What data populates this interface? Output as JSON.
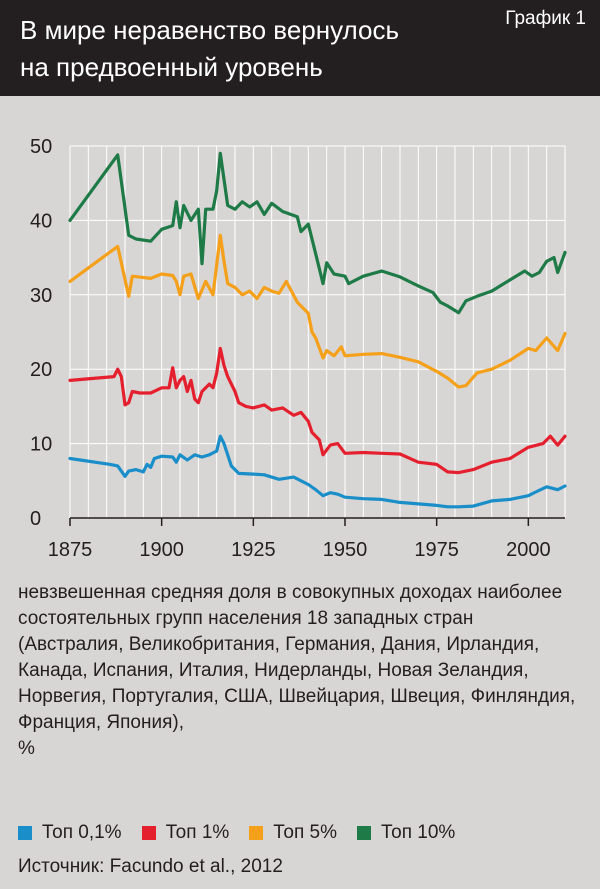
{
  "header": {
    "title_line1": "В мире неравенство вернулось",
    "title_line2": "на предвоенный уровень",
    "badge": "График 1"
  },
  "description": "невзвешенная средняя доля в совокупных доходах наиболее состоятельных групп населения 18 западных стран (Австралия, Великобритания, Германия, Дания, Ирландия, Канада, Испания, Италия, Нидерланды, Новая Зеландия, Норвегия, Португалия, США, Швейцария, Швеция, Финляндия, Франция, Япония),",
  "unit": "%",
  "source": "Источник: Facundo et al., 2012",
  "colors": {
    "top01": "#1a8ec9",
    "top1": "#e5202e",
    "top5": "#f5a01b",
    "top10": "#1e7a46"
  },
  "chart_data": {
    "type": "line",
    "xlim": [
      1875,
      2010
    ],
    "ylim": [
      0,
      50
    ],
    "xticks": [
      "1875",
      "1900",
      "1925",
      "1950",
      "1975",
      "2000"
    ],
    "yticks": [
      "0",
      "10",
      "20",
      "30",
      "40",
      "50"
    ],
    "grid": true,
    "legend_position": "bottom",
    "series": [
      {
        "name": "Топ 10%",
        "color": "#1e7a46",
        "points": [
          [
            1875,
            40
          ],
          [
            1888,
            48.8
          ],
          [
            1891,
            38
          ],
          [
            1893,
            37.5
          ],
          [
            1897,
            37.2
          ],
          [
            1900,
            38.8
          ],
          [
            1903,
            39.3
          ],
          [
            1904,
            42.5
          ],
          [
            1905,
            39
          ],
          [
            1906,
            42
          ],
          [
            1908,
            40
          ],
          [
            1910,
            41.5
          ],
          [
            1911,
            34.2
          ],
          [
            1912,
            41.5
          ],
          [
            1914,
            41.5
          ],
          [
            1915,
            44
          ],
          [
            1916,
            49
          ],
          [
            1918,
            42
          ],
          [
            1920,
            41.5
          ],
          [
            1922,
            42.5
          ],
          [
            1924,
            41.8
          ],
          [
            1926,
            42.5
          ],
          [
            1928,
            40.8
          ],
          [
            1930,
            42.3
          ],
          [
            1933,
            41.2
          ],
          [
            1937,
            40.5
          ],
          [
            1938,
            38.5
          ],
          [
            1940,
            39.5
          ],
          [
            1942,
            35.5
          ],
          [
            1944,
            31.5
          ],
          [
            1945,
            34.3
          ],
          [
            1947,
            32.8
          ],
          [
            1950,
            32.5
          ],
          [
            1951,
            31.5
          ],
          [
            1955,
            32.5
          ],
          [
            1960,
            33.2
          ],
          [
            1965,
            32.4
          ],
          [
            1970,
            31.2
          ],
          [
            1974,
            30.3
          ],
          [
            1976,
            29
          ],
          [
            1978,
            28.5
          ],
          [
            1981,
            27.6
          ],
          [
            1983,
            29.2
          ],
          [
            1986,
            29.8
          ],
          [
            1990,
            30.5
          ],
          [
            1995,
            32
          ],
          [
            1999,
            33.2
          ],
          [
            2001,
            32.5
          ],
          [
            2003,
            33
          ],
          [
            2005,
            34.5
          ],
          [
            2007,
            35
          ],
          [
            2008,
            33
          ],
          [
            2010,
            35.7
          ]
        ]
      },
      {
        "name": "Топ 5%",
        "color": "#f5a01b",
        "points": [
          [
            1875,
            31.8
          ],
          [
            1888,
            36.5
          ],
          [
            1891,
            29.8
          ],
          [
            1892,
            32.5
          ],
          [
            1897,
            32.2
          ],
          [
            1900,
            32.8
          ],
          [
            1903,
            32.6
          ],
          [
            1904,
            31.8
          ],
          [
            1905,
            30
          ],
          [
            1906,
            32.5
          ],
          [
            1908,
            32.8
          ],
          [
            1910,
            29.5
          ],
          [
            1912,
            31.8
          ],
          [
            1914,
            30
          ],
          [
            1916,
            38
          ],
          [
            1917,
            34.5
          ],
          [
            1918,
            31.5
          ],
          [
            1920,
            31
          ],
          [
            1922,
            30
          ],
          [
            1924,
            30.5
          ],
          [
            1926,
            29.5
          ],
          [
            1928,
            31
          ],
          [
            1930,
            30.5
          ],
          [
            1932,
            30.2
          ],
          [
            1934,
            31.8
          ],
          [
            1937,
            29
          ],
          [
            1938,
            28.5
          ],
          [
            1940,
            27.5
          ],
          [
            1941,
            25
          ],
          [
            1942,
            24.2
          ],
          [
            1944,
            21.5
          ],
          [
            1945,
            22.5
          ],
          [
            1947,
            21.8
          ],
          [
            1949,
            23
          ],
          [
            1950,
            21.8
          ],
          [
            1955,
            22
          ],
          [
            1960,
            22.1
          ],
          [
            1965,
            21.6
          ],
          [
            1970,
            21
          ],
          [
            1975,
            19.7
          ],
          [
            1978,
            18.8
          ],
          [
            1981,
            17.6
          ],
          [
            1983,
            17.8
          ],
          [
            1986,
            19.5
          ],
          [
            1990,
            20
          ],
          [
            1995,
            21.2
          ],
          [
            2000,
            22.8
          ],
          [
            2002,
            22.5
          ],
          [
            2005,
            24.2
          ],
          [
            2008,
            22.5
          ],
          [
            2010,
            24.8
          ]
        ]
      },
      {
        "name": "Топ 1%",
        "color": "#e5202e",
        "points": [
          [
            1875,
            18.5
          ],
          [
            1887,
            19
          ],
          [
            1888,
            20
          ],
          [
            1889,
            19
          ],
          [
            1890,
            15.2
          ],
          [
            1891,
            15.5
          ],
          [
            1892,
            17
          ],
          [
            1894,
            16.8
          ],
          [
            1897,
            16.8
          ],
          [
            1900,
            17.5
          ],
          [
            1902,
            17.5
          ],
          [
            1903,
            20.2
          ],
          [
            1904,
            17.5
          ],
          [
            1905,
            18.5
          ],
          [
            1906,
            19
          ],
          [
            1907,
            17
          ],
          [
            1908,
            18.5
          ],
          [
            1909,
            16
          ],
          [
            1910,
            15.5
          ],
          [
            1911,
            17
          ],
          [
            1913,
            18
          ],
          [
            1914,
            17.5
          ],
          [
            1915,
            19.5
          ],
          [
            1916,
            22.8
          ],
          [
            1917,
            20.5
          ],
          [
            1918,
            19
          ],
          [
            1920,
            17
          ],
          [
            1921,
            15.5
          ],
          [
            1923,
            15
          ],
          [
            1925,
            14.8
          ],
          [
            1928,
            15.2
          ],
          [
            1930,
            14.5
          ],
          [
            1933,
            14.8
          ],
          [
            1936,
            13.8
          ],
          [
            1938,
            14.2
          ],
          [
            1940,
            13
          ],
          [
            1941,
            11.5
          ],
          [
            1943,
            10.5
          ],
          [
            1944,
            8.5
          ],
          [
            1946,
            9.8
          ],
          [
            1948,
            10
          ],
          [
            1950,
            8.7
          ],
          [
            1955,
            8.8
          ],
          [
            1960,
            8.7
          ],
          [
            1965,
            8.6
          ],
          [
            1970,
            7.5
          ],
          [
            1975,
            7.2
          ],
          [
            1978,
            6.2
          ],
          [
            1981,
            6.1
          ],
          [
            1985,
            6.5
          ],
          [
            1990,
            7.5
          ],
          [
            1995,
            8
          ],
          [
            2000,
            9.5
          ],
          [
            2004,
            10
          ],
          [
            2006,
            11
          ],
          [
            2008,
            9.8
          ],
          [
            2010,
            11
          ]
        ]
      },
      {
        "name": "Топ 0,1%",
        "color": "#1a8ec9",
        "points": [
          [
            1875,
            8
          ],
          [
            1886,
            7.2
          ],
          [
            1888,
            7
          ],
          [
            1890,
            5.6
          ],
          [
            1891,
            6.3
          ],
          [
            1893,
            6.5
          ],
          [
            1895,
            6.2
          ],
          [
            1896,
            7.2
          ],
          [
            1897,
            6.8
          ],
          [
            1898,
            8
          ],
          [
            1900,
            8.3
          ],
          [
            1903,
            8.2
          ],
          [
            1904,
            7.5
          ],
          [
            1905,
            8.5
          ],
          [
            1907,
            7.8
          ],
          [
            1909,
            8.5
          ],
          [
            1911,
            8.2
          ],
          [
            1913,
            8.5
          ],
          [
            1915,
            9
          ],
          [
            1916,
            11
          ],
          [
            1917,
            10
          ],
          [
            1919,
            7
          ],
          [
            1921,
            6
          ],
          [
            1925,
            5.9
          ],
          [
            1928,
            5.8
          ],
          [
            1932,
            5.2
          ],
          [
            1936,
            5.5
          ],
          [
            1938,
            5
          ],
          [
            1940,
            4.5
          ],
          [
            1942,
            3.8
          ],
          [
            1944,
            3
          ],
          [
            1946,
            3.4
          ],
          [
            1948,
            3.2
          ],
          [
            1950,
            2.8
          ],
          [
            1955,
            2.6
          ],
          [
            1960,
            2.5
          ],
          [
            1965,
            2.1
          ],
          [
            1970,
            1.9
          ],
          [
            1975,
            1.7
          ],
          [
            1978,
            1.5
          ],
          [
            1981,
            1.5
          ],
          [
            1985,
            1.6
          ],
          [
            1990,
            2.3
          ],
          [
            1995,
            2.5
          ],
          [
            2000,
            3
          ],
          [
            2002,
            3.5
          ],
          [
            2005,
            4.2
          ],
          [
            2008,
            3.8
          ],
          [
            2010,
            4.3
          ]
        ]
      }
    ]
  },
  "legend": [
    {
      "label": "Топ 0,1%",
      "color": "#1a8ec9"
    },
    {
      "label": "Топ 1%",
      "color": "#e5202e"
    },
    {
      "label": "Топ 5%",
      "color": "#f5a01b"
    },
    {
      "label": "Топ 10%",
      "color": "#1e7a46"
    }
  ]
}
